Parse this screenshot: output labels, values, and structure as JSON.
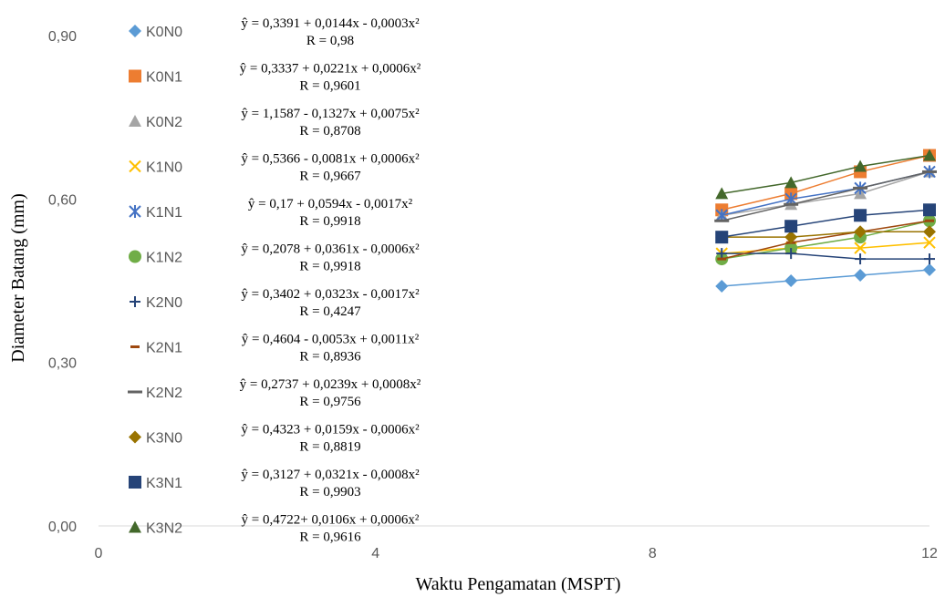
{
  "chart_data": {
    "type": "scatter",
    "title": "",
    "xlabel": "Waktu Pengamatan (MSPT)",
    "ylabel": "Diameter Batang (mm)",
    "xlim": [
      0,
      12
    ],
    "ylim": [
      0,
      0.9
    ],
    "x_ticks": [
      "0",
      "4",
      "8",
      "12"
    ],
    "y_ticks": [
      "0,00",
      "0,30",
      "0,60",
      "0,90"
    ],
    "grid": false,
    "legend_position": "left",
    "x": [
      9,
      10,
      11,
      12
    ],
    "series": [
      {
        "name": "K0N0",
        "marker": "diamond",
        "color": "#5B9BD5",
        "values": [
          0.44,
          0.45,
          0.46,
          0.47
        ],
        "equation": "ŷ = 0,3391 + 0,0144x - 0,0003x²",
        "r": "R = 0,98"
      },
      {
        "name": "K0N1",
        "marker": "square",
        "color": "#ED7D31",
        "values": [
          0.58,
          0.61,
          0.65,
          0.68
        ],
        "equation": "ŷ = 0,3337 + 0,0221x + 0,0006x²",
        "r": "R = 0,9601"
      },
      {
        "name": "K0N2",
        "marker": "triangle",
        "color": "#A5A5A5",
        "values": [
          0.57,
          0.59,
          0.61,
          0.65
        ],
        "equation": "ŷ = 1,1587 - 0,1327x + 0,0075x²",
        "r": "R = 0,8708"
      },
      {
        "name": "K1N0",
        "marker": "x",
        "color": "#FFC000",
        "values": [
          0.5,
          0.51,
          0.51,
          0.52
        ],
        "equation": "ŷ = 0,5366 - 0,0081x + 0,0006x²",
        "r": "R = 0,9667"
      },
      {
        "name": "K1N1",
        "marker": "star",
        "color": "#4472C4",
        "values": [
          0.57,
          0.6,
          0.62,
          0.65
        ],
        "equation": "ŷ = 0,17 + 0,0594x - 0,0017x²",
        "r": "R = 0,9918"
      },
      {
        "name": "K1N2",
        "marker": "circle",
        "color": "#70AD47",
        "values": [
          0.49,
          0.51,
          0.53,
          0.56
        ],
        "equation": "ŷ = 0,2078 + 0,0361x - 0,0006x²",
        "r": "R = 0,9918"
      },
      {
        "name": "K2N0",
        "marker": "plus",
        "color": "#264478",
        "values": [
          0.5,
          0.5,
          0.49,
          0.49
        ],
        "equation": "ŷ = 0,3402 + 0,0323x - 0,0017x²",
        "r": "R = 0,4247"
      },
      {
        "name": "K2N1",
        "marker": "dash",
        "color": "#9E480E",
        "values": [
          0.49,
          0.52,
          0.54,
          0.56
        ],
        "equation": "ŷ = 0,4604 - 0,0053x + 0,0011x²",
        "r": "R = 0,8936"
      },
      {
        "name": "K2N2",
        "marker": "longdash",
        "color": "#636363",
        "values": [
          0.56,
          0.59,
          0.62,
          0.65
        ],
        "equation": "ŷ = 0,2737 + 0,0239x + 0,0008x²",
        "r": "R = 0,9756"
      },
      {
        "name": "K3N0",
        "marker": "diamond",
        "color": "#997300",
        "values": [
          0.53,
          0.53,
          0.54,
          0.54
        ],
        "equation": "ŷ = 0,4323 + 0,0159x - 0,0006x²",
        "r": "R = 0,8819"
      },
      {
        "name": "K3N1",
        "marker": "square",
        "color": "#264478",
        "values": [
          0.53,
          0.55,
          0.57,
          0.58
        ],
        "equation": "ŷ = 0,3127 + 0,0321x - 0,0008x²",
        "r": "R = 0,9903"
      },
      {
        "name": "K3N2",
        "marker": "triangle",
        "color": "#43682B",
        "values": [
          0.61,
          0.63,
          0.66,
          0.68
        ],
        "equation": "ŷ = 0,4722+ 0,0106x + 0,0006x²",
        "r": "R = 0,9616"
      }
    ]
  }
}
